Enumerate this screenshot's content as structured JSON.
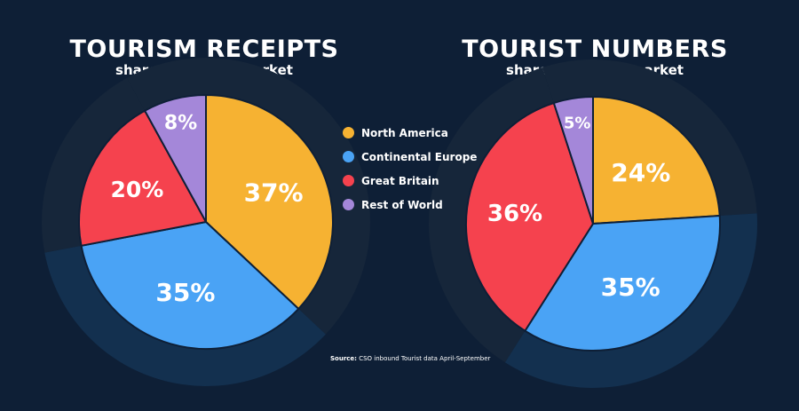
{
  "chart_data": [
    {
      "type": "pie",
      "title": "TOURISM RECEIPTS",
      "subtitle": "share by source market",
      "slices": [
        {
          "category": "North America",
          "value": 37,
          "label": "37%",
          "color": "#f6b232"
        },
        {
          "category": "Continental Europe",
          "value": 35,
          "label": "35%",
          "color": "#4aa3f5"
        },
        {
          "category": "Great Britain",
          "value": 20,
          "label": "20%",
          "color": "#f5424e"
        },
        {
          "category": "Rest of World",
          "value": 8,
          "label": "8%",
          "color": "#a487d9"
        }
      ]
    },
    {
      "type": "pie",
      "title": "TOURIST NUMBERS",
      "subtitle": "share by source market",
      "slices": [
        {
          "category": "North America",
          "value": 24,
          "label": "24%",
          "color": "#f6b232"
        },
        {
          "category": "Continental Europe",
          "value": 35,
          "label": "35%",
          "color": "#4aa3f5"
        },
        {
          "category": "Great Britain",
          "value": 36,
          "label": "36%",
          "color": "#f5424e"
        },
        {
          "category": "Rest of World",
          "value": 5,
          "label": "5%",
          "color": "#a487d9"
        }
      ]
    }
  ],
  "legend": [
    {
      "label": "North America",
      "color": "#f6b232"
    },
    {
      "label": "Continental Europe",
      "color": "#4aa3f5"
    },
    {
      "label": "Great Britain",
      "color": "#f5424e"
    },
    {
      "label": "Rest of World",
      "color": "#a487d9"
    }
  ],
  "source": {
    "prefix": "Source:",
    "text": "CSO inbound Tourist data April-September"
  },
  "colors": {
    "background": "#0e1f36",
    "ring_dark": "#16263a",
    "ring_blue": "#13304f",
    "text": "#ffffff"
  }
}
